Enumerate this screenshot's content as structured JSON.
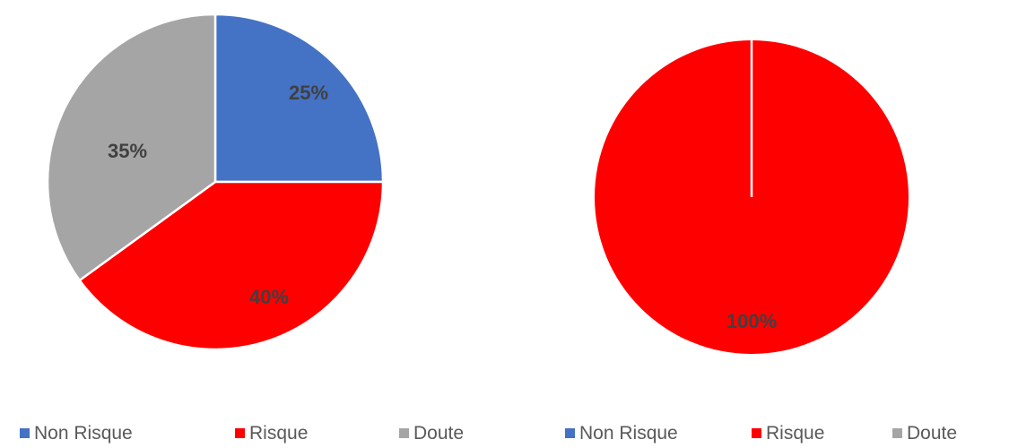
{
  "chart_data": [
    {
      "type": "pie",
      "categories": [
        "Non Risque",
        "Risque",
        "Doute"
      ],
      "values": [
        25,
        40,
        35
      ],
      "data_labels": [
        "25%",
        "40%",
        "35%"
      ],
      "colors": [
        "#4472C4",
        "#FF0000",
        "#A5A5A5"
      ],
      "legend": {
        "placement": "bottom",
        "entries": [
          "Non Risque",
          "Risque",
          "Doute"
        ]
      }
    },
    {
      "type": "pie",
      "categories": [
        "Non Risque",
        "Risque",
        "Doute"
      ],
      "values": [
        0,
        100,
        0
      ],
      "data_labels": [
        "",
        "100%",
        ""
      ],
      "colors": [
        "#4472C4",
        "#FF0000",
        "#A5A5A5"
      ],
      "legend": {
        "placement": "bottom",
        "entries": [
          "Non Risque",
          "Risque",
          "Doute"
        ]
      }
    }
  ]
}
